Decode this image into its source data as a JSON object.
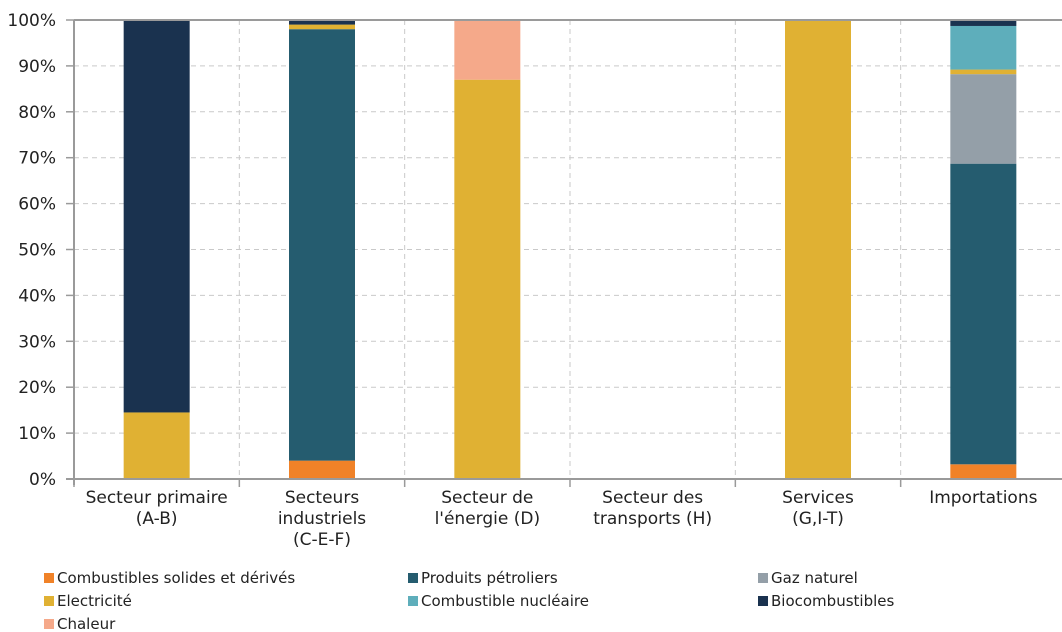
{
  "chart_data": {
    "type": "bar",
    "stacked": true,
    "categories": [
      [
        "Secteur primaire",
        "(A-B)"
      ],
      [
        "Secteurs",
        "industriels",
        "(C-E-F)"
      ],
      [
        "Secteur de",
        "l'énergie (D)"
      ],
      [
        "Secteur des",
        "transports (H)"
      ],
      [
        "Services",
        "(G,I-T)"
      ],
      [
        "Importations"
      ]
    ],
    "series": [
      {
        "name": "Combustibles solides et dérivés",
        "color": "#F08228",
        "values": [
          0,
          4,
          0,
          0,
          0,
          3.2
        ]
      },
      {
        "name": "Produits pétroliers",
        "color": "#255C6F",
        "values": [
          0,
          94,
          0,
          0,
          0,
          65.5
        ]
      },
      {
        "name": "Gaz naturel",
        "color": "#949FA8",
        "values": [
          0,
          0,
          0,
          0,
          0,
          19.5
        ]
      },
      {
        "name": "Electricité",
        "color": "#E0B133",
        "values": [
          14.5,
          1,
          87,
          0,
          100,
          1
        ]
      },
      {
        "name": "Combustible nucléaire",
        "color": "#5EAEBB",
        "values": [
          0,
          0,
          0,
          0,
          0,
          9.5
        ]
      },
      {
        "name": "Biocombustibles",
        "color": "#1A324F",
        "values": [
          85.5,
          1,
          0,
          0,
          0,
          1.3
        ]
      },
      {
        "name": "Chaleur",
        "color": "#F5A98A",
        "values": [
          0,
          0,
          13,
          0,
          0,
          0
        ]
      }
    ],
    "ylim": [
      0,
      100
    ],
    "yticks": [
      "0%",
      "10%",
      "20%",
      "30%",
      "40%",
      "50%",
      "60%",
      "70%",
      "80%",
      "90%",
      "100%"
    ],
    "grid": true,
    "legend_position": "bottom"
  }
}
